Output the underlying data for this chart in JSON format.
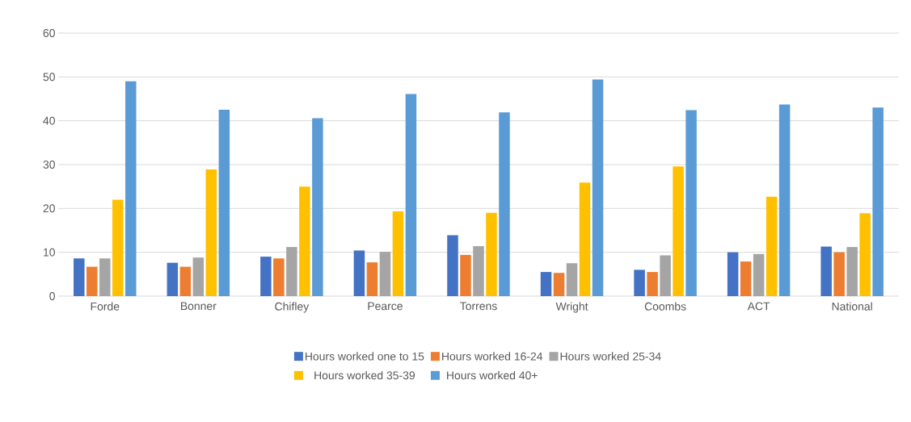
{
  "chart_data": {
    "type": "bar",
    "categories": [
      "Forde",
      "Bonner",
      "Chifley",
      "Pearce",
      "Torrens",
      "Wright",
      "Coombs",
      "ACT",
      "National"
    ],
    "series": [
      {
        "name": "Hours worked  one to 15",
        "color": "#4472c4",
        "values": [
          8.6,
          7.6,
          9.0,
          10.4,
          13.9,
          5.5,
          6.0,
          10.0,
          11.3
        ]
      },
      {
        "name": "Hours worked  16-24",
        "color": "#ed7d31",
        "values": [
          6.7,
          6.7,
          8.6,
          7.7,
          9.4,
          5.3,
          5.5,
          7.9,
          10.0
        ]
      },
      {
        "name": "Hours worked  25-34",
        "color": "#a5a5a5",
        "values": [
          8.6,
          8.8,
          11.2,
          10.1,
          11.4,
          7.5,
          9.3,
          9.6,
          11.2
        ]
      },
      {
        "name": "Hours worked  35-39",
        "color": "#ffc000",
        "values": [
          22.0,
          28.9,
          25.0,
          19.3,
          19.0,
          25.9,
          29.6,
          22.7,
          18.9
        ]
      },
      {
        "name": "Hours worked  40+",
        "color": "#5b9bd5",
        "values": [
          49.0,
          42.5,
          40.6,
          46.1,
          41.9,
          49.4,
          42.4,
          43.7,
          43.0
        ]
      }
    ],
    "ylim": [
      0,
      60
    ],
    "yticks": [
      0,
      10,
      20,
      30,
      40,
      50,
      60
    ],
    "grid": "y",
    "legend": "bottom"
  }
}
